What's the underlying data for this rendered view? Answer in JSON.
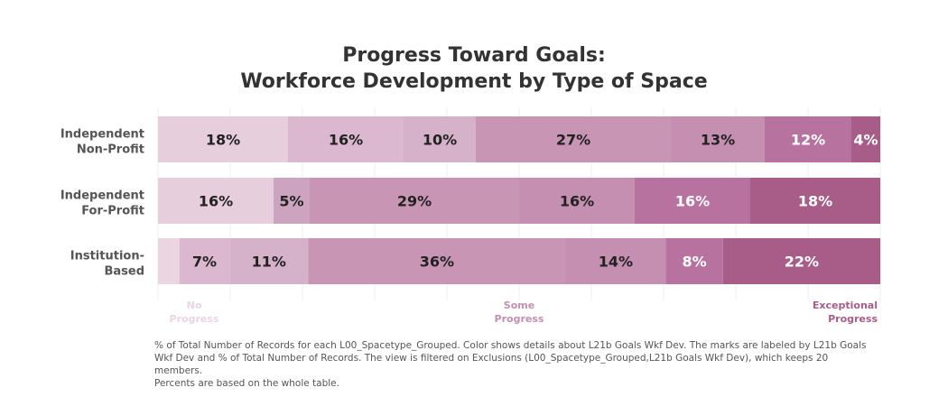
{
  "chart_data": {
    "type": "bar",
    "stacked": true,
    "orientation": "horizontal",
    "title": [
      "Progress Toward Goals:",
      "Workforce Development by Type of Space"
    ],
    "categories": [
      [
        "Independent",
        "Non-Profit"
      ],
      [
        "Independent",
        "For-Profit"
      ],
      [
        "Institution-",
        "Based"
      ]
    ],
    "levels": [
      1,
      2,
      3,
      4,
      5,
      6,
      7,
      8,
      9,
      10
    ],
    "level_colors": [
      "#ead5e1",
      "#e7cedc",
      "#dcb8d0",
      "#d6b1ca",
      "#cda4c0",
      "#c896b4",
      "#c48fb0",
      "#c08aac",
      "#b872a0",
      "#a75d87"
    ],
    "rows": [
      {
        "values": [
          18,
          16,
          10,
          27,
          13,
          12,
          4
        ],
        "labels": [
          "18%",
          "16%",
          "10%",
          "27%",
          "13%",
          "12%",
          "4%"
        ],
        "levels": [
          2,
          3,
          4,
          6,
          7,
          9,
          10
        ]
      },
      {
        "values": [
          16,
          5,
          29,
          16,
          16,
          18
        ],
        "labels": [
          "16%",
          "5%",
          "29%",
          "16%",
          "16%",
          "18%"
        ],
        "levels": [
          2,
          5,
          6,
          7,
          9,
          10
        ]
      },
      {
        "values": [
          3,
          7,
          11,
          36,
          14,
          8,
          22
        ],
        "labels": [
          "",
          "7%",
          "11%",
          "36%",
          "14%",
          "8%",
          "22%"
        ],
        "levels": [
          1,
          3,
          4,
          6,
          7,
          9,
          10
        ]
      }
    ],
    "xlim": [
      0,
      100
    ],
    "grid": true,
    "legend": [
      {
        "label": [
          "No",
          "Progress"
        ],
        "color": "#ead5e1",
        "level": 1
      },
      {
        "label": [
          "Some",
          "Progress"
        ],
        "color": "#c48fb0",
        "level": 5.5
      },
      {
        "label": [
          "Exceptional",
          "Progress"
        ],
        "color": "#a75d87",
        "level": 10
      }
    ],
    "caption": [
      "% of Total Number of Records for each L00_Spacetype_Grouped.  Color shows details about L21b Goals Wkf Dev.  The marks are labeled by L21b Goals",
      "Wkf Dev and % of Total Number of Records. The view is filtered on Exclusions (L00_Spacetype_Grouped,L21b Goals Wkf Dev), which keeps 20 members.",
      "Percents are based on the whole table."
    ]
  }
}
